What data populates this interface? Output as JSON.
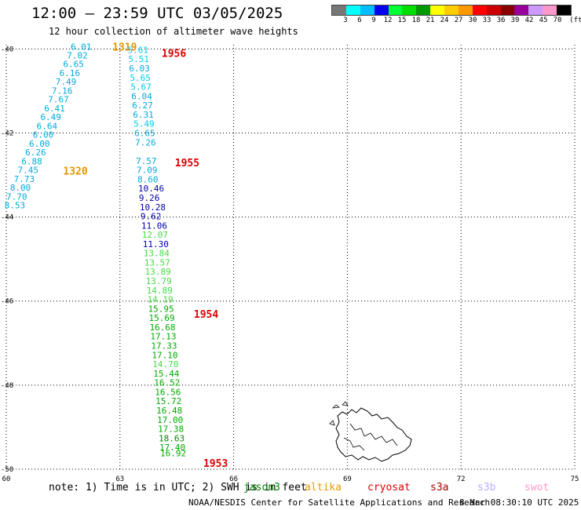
{
  "title": "12:00 — 23:59 UTC 03/05/2025",
  "subtitle": "12 hour collection of altimeter wave heights",
  "legend": {
    "colors": [
      "#777777",
      "#00ffff",
      "#00bfff",
      "#0000ee",
      "#00ff33",
      "#00dd00",
      "#009900",
      "#ffff00",
      "#ffcc00",
      "#ff9900",
      "#ff0000",
      "#cc0000",
      "#880000",
      "#990099",
      "#cc99ff",
      "#ff99cc",
      "#000000"
    ],
    "labels": [
      "3",
      "6",
      "9",
      "12",
      "15",
      "18",
      "21",
      "24",
      "27",
      "30",
      "33",
      "36",
      "39",
      "42",
      "45",
      "70"
    ],
    "unit": "(ft)"
  },
  "map": {
    "lon_range": [
      60,
      75
    ],
    "lat_range": [
      -50,
      -39.9
    ],
    "lon_ticks": [
      "60",
      "63",
      "66",
      "69",
      "72",
      "75"
    ],
    "lat_ticks": [
      "-40",
      "-42",
      "-44",
      "-46",
      "-48",
      "-50"
    ],
    "grid": "dotted"
  },
  "time_labels": [
    {
      "text": "1319",
      "lon": 62.8,
      "lat": -39.95,
      "color": "#e69500"
    },
    {
      "text": "1320",
      "lon": 61.5,
      "lat": -42.9,
      "color": "#e69500"
    },
    {
      "text": "1956",
      "lon": 64.1,
      "lat": -40.1,
      "color": "#dd0000"
    },
    {
      "text": "1955",
      "lon": 64.45,
      "lat": -42.7,
      "color": "#dd0000"
    },
    {
      "text": "1954",
      "lon": 64.95,
      "lat": -46.3,
      "color": "#dd0000"
    },
    {
      "text": "1953",
      "lon": 65.2,
      "lat": -49.85,
      "color": "#dd0000"
    }
  ],
  "track_1": [
    {
      "v": "6.01",
      "lon": 61.7,
      "lat": -39.95,
      "c": "#00aadd"
    },
    {
      "v": "7.02",
      "lon": 61.6,
      "lat": -40.15,
      "c": "#00aadd"
    },
    {
      "v": "6.65",
      "lon": 61.5,
      "lat": -40.36,
      "c": "#00aadd"
    },
    {
      "v": "6.16",
      "lon": 61.4,
      "lat": -40.57,
      "c": "#00aadd"
    },
    {
      "v": "7.49",
      "lon": 61.3,
      "lat": -40.78,
      "c": "#00aadd"
    },
    {
      "v": "7.16",
      "lon": 61.2,
      "lat": -40.99,
      "c": "#00aadd"
    },
    {
      "v": "7.67",
      "lon": 61.1,
      "lat": -41.2,
      "c": "#00aadd"
    },
    {
      "v": "6.41",
      "lon": 61.0,
      "lat": -41.41,
      "c": "#00aadd"
    },
    {
      "v": "6.49",
      "lon": 60.9,
      "lat": -41.62,
      "c": "#00aadd"
    },
    {
      "v": "6.64",
      "lon": 60.8,
      "lat": -41.83,
      "c": "#00aadd"
    },
    {
      "v": "6.00",
      "lon": 60.7,
      "lat": -42.04,
      "c": "#00aadd"
    },
    {
      "v": "6.00",
      "lon": 60.6,
      "lat": -42.25,
      "c": "#00aadd"
    },
    {
      "v": "6.26",
      "lon": 60.5,
      "lat": -42.46,
      "c": "#00aadd"
    },
    {
      "v": "6.88",
      "lon": 60.4,
      "lat": -42.67,
      "c": "#00aadd"
    },
    {
      "v": "7.45",
      "lon": 60.3,
      "lat": -42.88,
      "c": "#00aadd"
    },
    {
      "v": "7.73",
      "lon": 60.2,
      "lat": -43.09,
      "c": "#00aadd"
    },
    {
      "v": "8.00",
      "lon": 60.1,
      "lat": -43.3,
      "c": "#00aadd"
    },
    {
      "v": "7.70",
      "lon": 60.0,
      "lat": -43.51,
      "c": "#00aadd"
    },
    {
      "v": "8.53",
      "lon": 59.95,
      "lat": -43.72,
      "c": "#00aadd"
    }
  ],
  "track_2": [
    {
      "v": "5.61",
      "lon": 63.2,
      "lat": -40.02,
      "c": "#00ccee"
    },
    {
      "v": "5.51",
      "lon": 63.22,
      "lat": -40.24,
      "c": "#00ccee"
    },
    {
      "v": "6.03",
      "lon": 63.24,
      "lat": -40.46,
      "c": "#00aadd"
    },
    {
      "v": "5.65",
      "lon": 63.26,
      "lat": -40.68,
      "c": "#00ccee"
    },
    {
      "v": "5.67",
      "lon": 63.28,
      "lat": -40.9,
      "c": "#00ccee"
    },
    {
      "v": "6.04",
      "lon": 63.3,
      "lat": -41.12,
      "c": "#00aadd"
    },
    {
      "v": "6.27",
      "lon": 63.32,
      "lat": -41.34,
      "c": "#00aadd"
    },
    {
      "v": "6.31",
      "lon": 63.34,
      "lat": -41.56,
      "c": "#00aadd"
    },
    {
      "v": "5.49",
      "lon": 63.36,
      "lat": -41.78,
      "c": "#00ccee"
    },
    {
      "v": "6.65",
      "lon": 63.38,
      "lat": -42.0,
      "c": "#00aadd"
    },
    {
      "v": "7.26",
      "lon": 63.4,
      "lat": -42.22,
      "c": "#00aadd"
    },
    {
      "v": "7.57",
      "lon": 63.42,
      "lat": -42.66,
      "c": "#00aadd"
    },
    {
      "v": "7.09",
      "lon": 63.44,
      "lat": -42.88,
      "c": "#00aadd"
    },
    {
      "v": "8.60",
      "lon": 63.46,
      "lat": -43.1,
      "c": "#00aadd"
    },
    {
      "v": "10.46",
      "lon": 63.48,
      "lat": -43.32,
      "c": "#0000aa"
    },
    {
      "v": "9.26",
      "lon": 63.5,
      "lat": -43.54,
      "c": "#0000aa"
    },
    {
      "v": "10.28",
      "lon": 63.52,
      "lat": -43.76,
      "c": "#0000aa"
    },
    {
      "v": "9.62",
      "lon": 63.54,
      "lat": -43.98,
      "c": "#0000aa"
    },
    {
      "v": "11.06",
      "lon": 63.56,
      "lat": -44.2,
      "c": "#0000aa"
    },
    {
      "v": "12.07",
      "lon": 63.58,
      "lat": -44.42,
      "c": "#44dd44"
    },
    {
      "v": "11.30",
      "lon": 63.6,
      "lat": -44.64,
      "c": "#0000aa"
    },
    {
      "v": "13.84",
      "lon": 63.62,
      "lat": -44.86,
      "c": "#44dd44"
    },
    {
      "v": "13.57",
      "lon": 63.64,
      "lat": -45.08,
      "c": "#44dd44"
    },
    {
      "v": "13.89",
      "lon": 63.66,
      "lat": -45.3,
      "c": "#44dd44"
    },
    {
      "v": "13.79",
      "lon": 63.68,
      "lat": -45.52,
      "c": "#44dd44"
    },
    {
      "v": "14.89",
      "lon": 63.7,
      "lat": -45.74,
      "c": "#44dd44"
    },
    {
      "v": "14.19",
      "lon": 63.72,
      "lat": -45.96,
      "c": "#44dd44"
    },
    {
      "v": "15.95",
      "lon": 63.74,
      "lat": -46.18,
      "c": "#00aa00"
    },
    {
      "v": "15.69",
      "lon": 63.76,
      "lat": -46.4,
      "c": "#00aa00"
    },
    {
      "v": "16.68",
      "lon": 63.78,
      "lat": -46.62,
      "c": "#00aa00"
    },
    {
      "v": "17.13",
      "lon": 63.8,
      "lat": -46.84,
      "c": "#00aa00"
    },
    {
      "v": "17.33",
      "lon": 63.82,
      "lat": -47.06,
      "c": "#00aa00"
    },
    {
      "v": "17.10",
      "lon": 63.84,
      "lat": -47.28,
      "c": "#00aa00"
    },
    {
      "v": "14.70",
      "lon": 63.86,
      "lat": -47.5,
      "c": "#44dd44"
    },
    {
      "v": "15.44",
      "lon": 63.88,
      "lat": -47.72,
      "c": "#00aa00"
    },
    {
      "v": "16.52",
      "lon": 63.9,
      "lat": -47.94,
      "c": "#00aa00"
    },
    {
      "v": "16.56",
      "lon": 63.92,
      "lat": -48.16,
      "c": "#00aa00"
    },
    {
      "v": "15.72",
      "lon": 63.94,
      "lat": -48.38,
      "c": "#00aa00"
    },
    {
      "v": "16.48",
      "lon": 63.96,
      "lat": -48.6,
      "c": "#00aa00"
    },
    {
      "v": "17.00",
      "lon": 63.98,
      "lat": -48.82,
      "c": "#00aa00"
    },
    {
      "v": "17.38",
      "lon": 64.0,
      "lat": -49.04,
      "c": "#00aa00"
    },
    {
      "v": "18.63",
      "lon": 64.02,
      "lat": -49.26,
      "c": "#008800"
    },
    {
      "v": "17.40",
      "lon": 64.04,
      "lat": -49.48,
      "c": "#00aa00"
    },
    {
      "v": "16.92",
      "lon": 64.06,
      "lat": -49.62,
      "c": "#00aa00"
    }
  ],
  "footer": {
    "note": "note: 1) Time is in UTC; 2) SWH is in feet",
    "satellites": [
      {
        "name": "jason3",
        "color": "#008800"
      },
      {
        "name": "altika",
        "color": "#ee9900"
      },
      {
        "name": "cryosat",
        "color": "#dd0000"
      },
      {
        "name": "s3a",
        "color": "#aa0000"
      },
      {
        "name": "s3b",
        "color": "#bbaaff"
      },
      {
        "name": "swot",
        "color": "#ff99cc"
      }
    ],
    "credit": "NOAA/NESDIS Center for Satellite Applications and Research",
    "timestamp": "8 Mar 08:30:10 UTC 2025"
  }
}
